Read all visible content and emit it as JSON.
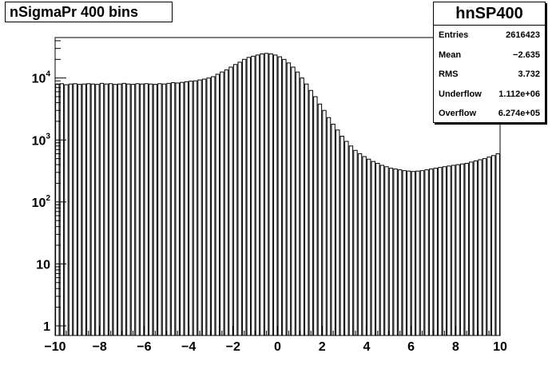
{
  "chart_data": {
    "type": "bar",
    "title": "nSigmaPr 400 bins",
    "xlabel": "",
    "ylabel": "",
    "xlim": [
      -10,
      10
    ],
    "ylim": [
      0.7,
      45000
    ],
    "yscale": "log",
    "grid": false,
    "x_ticks": [
      "−10",
      "−8",
      "−6",
      "−4",
      "−2",
      "0",
      "2",
      "4",
      "6",
      "8",
      "10"
    ],
    "y_ticks": [
      {
        "base": "1",
        "exp": ""
      },
      {
        "base": "10",
        "exp": ""
      },
      {
        "base": "10",
        "exp": "2"
      },
      {
        "base": "10",
        "exp": "3"
      },
      {
        "base": "10",
        "exp": "4"
      }
    ],
    "x": [
      -9.9,
      -9.7,
      -9.5,
      -9.3,
      -9.1,
      -8.9,
      -8.7,
      -8.5,
      -8.3,
      -8.1,
      -7.9,
      -7.7,
      -7.5,
      -7.3,
      -7.1,
      -6.9,
      -6.7,
      -6.5,
      -6.3,
      -6.1,
      -5.9,
      -5.7,
      -5.5,
      -5.3,
      -5.1,
      -4.9,
      -4.7,
      -4.5,
      -4.3,
      -4.1,
      -3.9,
      -3.7,
      -3.5,
      -3.3,
      -3.1,
      -2.9,
      -2.7,
      -2.5,
      -2.3,
      -2.1,
      -1.9,
      -1.7,
      -1.5,
      -1.3,
      -1.1,
      -0.9,
      -0.7,
      -0.5,
      -0.3,
      -0.1,
      0.1,
      0.3,
      0.5,
      0.7,
      0.9,
      1.1,
      1.3,
      1.5,
      1.7,
      1.9,
      2.1,
      2.3,
      2.5,
      2.7,
      2.9,
      3.1,
      3.3,
      3.5,
      3.7,
      3.9,
      4.1,
      4.3,
      4.5,
      4.7,
      4.9,
      5.1,
      5.3,
      5.5,
      5.7,
      5.9,
      6.1,
      6.3,
      6.5,
      6.7,
      6.9,
      7.1,
      7.3,
      7.5,
      7.7,
      7.9,
      8.1,
      8.3,
      8.5,
      8.7,
      8.9,
      9.1,
      9.3,
      9.5,
      9.7,
      9.9
    ],
    "values": [
      7900,
      8100,
      7800,
      8000,
      8100,
      7900,
      8000,
      8100,
      8000,
      7900,
      8200,
      8000,
      8100,
      7900,
      8000,
      8200,
      8000,
      7900,
      8100,
      8000,
      8100,
      8000,
      7900,
      8100,
      8000,
      8200,
      8400,
      8300,
      8500,
      8700,
      8900,
      9000,
      9300,
      9600,
      10000,
      10500,
      11500,
      12500,
      13500,
      15000,
      16500,
      18000,
      20000,
      21500,
      22500,
      23500,
      24500,
      25000,
      24500,
      23500,
      22000,
      20000,
      17500,
      15000,
      12500,
      10000,
      8000,
      6300,
      5000,
      3800,
      3000,
      2300,
      1800,
      1450,
      1150,
      950,
      800,
      680,
      600,
      540,
      490,
      450,
      420,
      390,
      370,
      350,
      340,
      330,
      320,
      315,
      310,
      315,
      320,
      330,
      340,
      350,
      360,
      370,
      380,
      390,
      400,
      410,
      420,
      440,
      460,
      480,
      500,
      530,
      560,
      600
    ]
  },
  "stats": {
    "name": "hnSP400",
    "rows": [
      {
        "label": "Entries",
        "value": "2616423"
      },
      {
        "label": "Mean",
        "value": "−2.635"
      },
      {
        "label": "RMS",
        "value": "3.732"
      },
      {
        "label": "Underflow",
        "value": "1.112e+06"
      },
      {
        "label": "Overflow",
        "value": "6.274e+05"
      }
    ]
  }
}
